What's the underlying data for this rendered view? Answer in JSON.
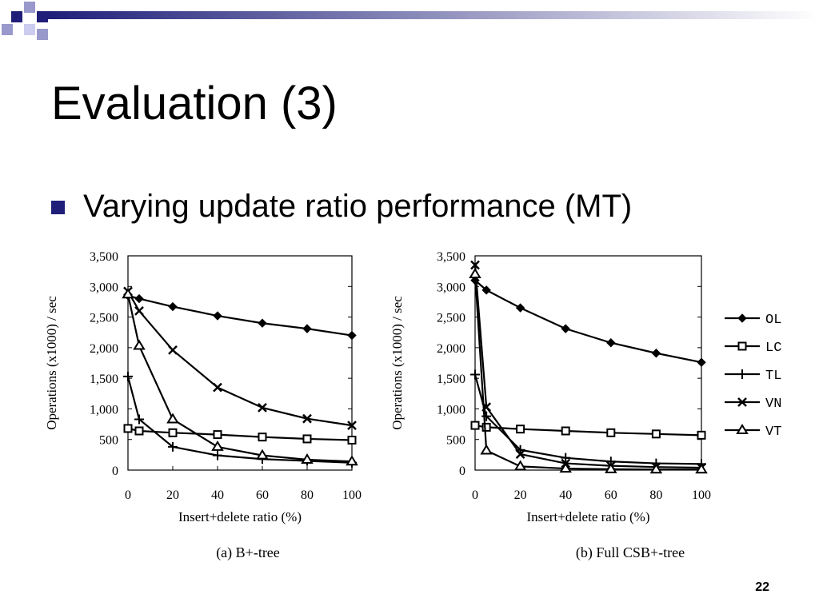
{
  "slide": {
    "title": "Evaluation (3)",
    "bullet": "Varying update ratio performance (MT)",
    "page_number": "22"
  },
  "colors": {
    "deco_blue": "#1f1f7a",
    "deco_light": "#9999cc",
    "bullet": "#1f1f7a",
    "ink": "#000000"
  },
  "legend": {
    "entries": [
      {
        "series": "OL",
        "label": "OL",
        "marker": "diamond"
      },
      {
        "series": "LC",
        "label": "LC",
        "marker": "square"
      },
      {
        "series": "TL",
        "label": "TL",
        "marker": "plus"
      },
      {
        "series": "VN",
        "label": "VN",
        "marker": "cross"
      },
      {
        "series": "VT",
        "label": "VT",
        "marker": "triangle"
      }
    ],
    "placement": "right"
  },
  "chart_data": [
    {
      "type": "line",
      "title": "",
      "caption": "(a) B+-tree",
      "xlabel": "Insert+delete ratio (%)",
      "ylabel": "Operations (x1000) / sec",
      "xlim": [
        0,
        100
      ],
      "ylim": [
        0,
        3500
      ],
      "xticks": [
        0,
        20,
        40,
        60,
        80,
        100
      ],
      "yticks": [
        0,
        500,
        1000,
        1500,
        2000,
        2500,
        3000,
        3500
      ],
      "ytick_labels": [
        "0",
        "500",
        "1,000",
        "1,500",
        "2,000",
        "2,500",
        "3,000",
        "3,500"
      ],
      "grid": false,
      "series": [
        {
          "name": "OL",
          "marker": "diamond",
          "x": [
            0,
            5,
            20,
            40,
            60,
            80,
            100
          ],
          "values": [
            2850,
            2800,
            2670,
            2520,
            2400,
            2310,
            2200
          ]
        },
        {
          "name": "LC",
          "marker": "square",
          "x": [
            0,
            5,
            20,
            40,
            60,
            80,
            100
          ],
          "values": [
            680,
            640,
            610,
            580,
            540,
            510,
            490
          ]
        },
        {
          "name": "TL",
          "marker": "plus",
          "x": [
            0,
            5,
            20,
            40,
            60,
            80,
            100
          ],
          "values": [
            1530,
            830,
            380,
            240,
            180,
            150,
            120
          ]
        },
        {
          "name": "VN",
          "marker": "cross",
          "x": [
            0,
            5,
            20,
            40,
            60,
            80,
            100
          ],
          "values": [
            2920,
            2600,
            1960,
            1350,
            1020,
            840,
            730
          ]
        },
        {
          "name": "VT",
          "marker": "triangle",
          "x": [
            0,
            5,
            20,
            40,
            60,
            80,
            100
          ],
          "values": [
            2870,
            2030,
            830,
            380,
            240,
            170,
            140
          ]
        }
      ]
    },
    {
      "type": "line",
      "title": "",
      "caption": "(b) Full CSB+-tree",
      "xlabel": "Insert+delete ratio (%)",
      "ylabel": "Operations (x1000) / sec",
      "xlim": [
        0,
        100
      ],
      "ylim": [
        0,
        3500
      ],
      "xticks": [
        0,
        20,
        40,
        60,
        80,
        100
      ],
      "yticks": [
        0,
        500,
        1000,
        1500,
        2000,
        2500,
        3000,
        3500
      ],
      "ytick_labels": [
        "0",
        "500",
        "1,000",
        "1,500",
        "2,000",
        "2,500",
        "3,000",
        "3,500"
      ],
      "grid": false,
      "series": [
        {
          "name": "OL",
          "marker": "diamond",
          "x": [
            0,
            5,
            20,
            40,
            60,
            80,
            100
          ],
          "values": [
            3100,
            2940,
            2650,
            2310,
            2080,
            1910,
            1760
          ]
        },
        {
          "name": "LC",
          "marker": "square",
          "x": [
            0,
            5,
            20,
            40,
            60,
            80,
            100
          ],
          "values": [
            730,
            700,
            670,
            640,
            610,
            590,
            570
          ]
        },
        {
          "name": "TL",
          "marker": "plus",
          "x": [
            0,
            5,
            20,
            40,
            60,
            80,
            100
          ],
          "values": [
            1560,
            880,
            330,
            200,
            140,
            110,
            100
          ]
        },
        {
          "name": "VN",
          "marker": "cross",
          "x": [
            0,
            5,
            20,
            40,
            60,
            80,
            100
          ],
          "values": [
            3350,
            1030,
            260,
            110,
            70,
            50,
            40
          ]
        },
        {
          "name": "VT",
          "marker": "triangle",
          "x": [
            0,
            5,
            20,
            40,
            60,
            80,
            100
          ],
          "values": [
            3200,
            320,
            60,
            25,
            15,
            10,
            10
          ]
        }
      ]
    }
  ]
}
